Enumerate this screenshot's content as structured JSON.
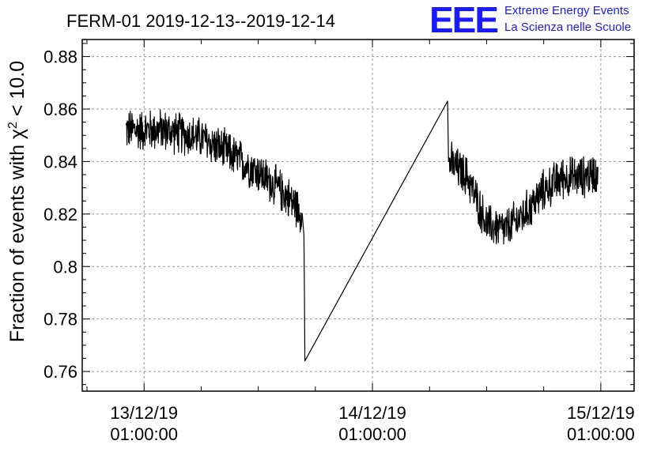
{
  "chart_data": {
    "type": "line",
    "title": "FERM-01 2019-12-13--2019-12-14",
    "ylabel": "Fraction of events with χ² < 10.0",
    "ylabel_parts": {
      "before": "Fraction of events with χ",
      "sup": "2",
      "after": " < 10.0"
    },
    "xlabel": "",
    "x_axis": "time",
    "x_ticks": [
      {
        "date": "13/12/19",
        "time": "01:00:00"
      },
      {
        "date": "14/12/19",
        "time": "01:00:00"
      },
      {
        "date": "15/12/19",
        "time": "01:00:00"
      }
    ],
    "xlim_hours": [
      -6.5,
      51.5
    ],
    "y_ticks": [
      "0.76",
      "0.78",
      "0.8",
      "0.82",
      "0.84",
      "0.86",
      "0.88"
    ],
    "ylim": [
      0.7525,
      0.8865
    ],
    "grid": true,
    "series": [
      {
        "color": "#000000",
        "anchor_points": [
          {
            "hours_since_2019-12-13_01:00": -1.9,
            "value": 0.852
          },
          {
            "hours_since_2019-12-13_01:00": 2.0,
            "value": 0.852
          },
          {
            "hours_since_2019-12-13_01:00": 6.0,
            "value": 0.849
          },
          {
            "hours_since_2019-12-13_01:00": 9.0,
            "value": 0.843
          },
          {
            "hours_since_2019-12-13_01:00": 12.0,
            "value": 0.836
          },
          {
            "hours_since_2019-12-13_01:00": 15.0,
            "value": 0.827
          },
          {
            "hours_since_2019-12-13_01:00": 16.5,
            "value": 0.821
          },
          {
            "hours_since_2019-12-13_01:00": 16.8,
            "value": 0.812
          },
          {
            "hours_since_2019-12-13_01:00": 16.9,
            "value": 0.764
          },
          {
            "hours_since_2019-12-13_01:00": 31.9,
            "value": 0.863
          },
          {
            "hours_since_2019-12-13_01:00": 32.0,
            "value": 0.84
          },
          {
            "hours_since_2019-12-13_01:00": 34.0,
            "value": 0.834
          },
          {
            "hours_since_2019-12-13_01:00": 36.0,
            "value": 0.816
          },
          {
            "hours_since_2019-12-13_01:00": 38.0,
            "value": 0.814
          },
          {
            "hours_since_2019-12-13_01:00": 40.0,
            "value": 0.82
          },
          {
            "hours_since_2019-12-13_01:00": 42.0,
            "value": 0.829
          },
          {
            "hours_since_2019-12-13_01:00": 44.0,
            "value": 0.834
          },
          {
            "hours_since_2019-12-13_01:00": 46.0,
            "value": 0.834
          },
          {
            "hours_since_2019-12-13_01:00": 47.7,
            "value": 0.836
          }
        ],
        "noise_amplitude": 0.008,
        "gap_hours": [
          16.9,
          31.9
        ]
      }
    ]
  },
  "logo": {
    "mark": "EEE",
    "line1": "Extreme Energy Events",
    "line2": "La Scienza nelle Scuole",
    "color": "#1a1aff"
  }
}
